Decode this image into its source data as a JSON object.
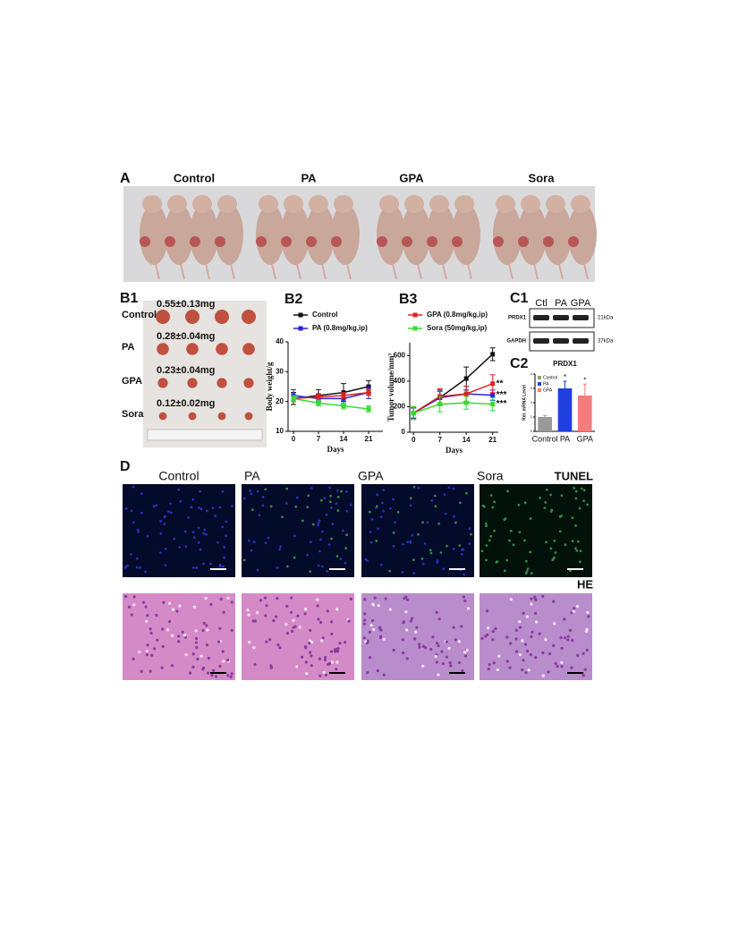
{
  "panel_a": {
    "label": "A",
    "groups": [
      "Control",
      "PA",
      "GPA",
      "Sora"
    ]
  },
  "panel_b1": {
    "label": "B1",
    "rows": [
      {
        "group": "Control",
        "weight": "0.55±0.13mg"
      },
      {
        "group": "PA",
        "weight": "0.28±0.04mg"
      },
      {
        "group": "GPA",
        "weight": "0.23±0.04mg"
      },
      {
        "group": "Sora",
        "weight": "0.12±0.02mg"
      }
    ]
  },
  "panel_c1": {
    "label": "C1",
    "lanes": [
      "Ctl",
      "PA",
      "GPA"
    ],
    "proteins": [
      {
        "name": "PRDX1",
        "size": "21kDa"
      },
      {
        "name": "GAPDH",
        "size": "37kDa"
      }
    ]
  },
  "panel_d": {
    "label": "D",
    "groups": [
      "Control",
      "PA",
      "GPA",
      "Sora"
    ],
    "stains": [
      "TUNEL",
      "HE"
    ]
  },
  "chart_data": [
    {
      "type": "line",
      "label": "B2",
      "x": [
        0,
        7,
        14,
        21
      ],
      "xlim": [
        -1.5,
        25
      ],
      "xticks": [
        0,
        7,
        14,
        21
      ],
      "ylim": [
        10,
        40
      ],
      "yticks": [
        10,
        20,
        30,
        40
      ],
      "xlabel": "Days",
      "ylabel": "Body weight/g",
      "series": [
        {
          "name": "Control",
          "color": "#111111",
          "values": [
            21,
            22,
            23,
            25
          ],
          "errors": [
            2,
            2,
            3,
            2
          ]
        },
        {
          "name": "PA (0.8mg/kg,ip)",
          "color": "#2222dd",
          "values": [
            22,
            21,
            21,
            23
          ],
          "errors": [
            2,
            1,
            2,
            2
          ]
        },
        {
          "color": "#dd2222",
          "values": [
            21,
            21.5,
            22,
            23
          ],
          "errors": [
            1,
            1,
            1,
            1
          ]
        },
        {
          "color": "#33dd33",
          "values": [
            21,
            19.5,
            18.5,
            17.5
          ],
          "errors": [
            1,
            1,
            1,
            1
          ]
        }
      ]
    },
    {
      "type": "line",
      "label": "B3",
      "x": [
        0,
        7,
        14,
        21
      ],
      "xlim": [
        -1,
        22.5
      ],
      "xticks": [
        0,
        7,
        14,
        21
      ],
      "ylim": [
        0,
        700
      ],
      "yticks": [
        0,
        200,
        400,
        600
      ],
      "xlabel": "Days",
      "ylabel": "Tumor volume/mm³",
      "series": [
        {
          "color": "#111111",
          "values": [
            150,
            270,
            420,
            610
          ],
          "errors": [
            40,
            60,
            90,
            50
          ]
        },
        {
          "color": "#2222dd",
          "values": [
            150,
            270,
            300,
            290
          ],
          "errors": [
            40,
            50,
            60,
            40
          ],
          "end_label": "***"
        },
        {
          "name": "GPA (0.8mg/kg,ip)",
          "color": "#dd2222",
          "values": [
            150,
            280,
            300,
            380
          ],
          "errors": [
            50,
            60,
            60,
            70
          ],
          "end_label": "**"
        },
        {
          "name": "Sora (50mg/kg,ip)",
          "color": "#33dd33",
          "values": [
            150,
            220,
            230,
            220
          ],
          "errors": [
            50,
            60,
            50,
            50
          ],
          "end_label": "***"
        }
      ]
    },
    {
      "type": "bar",
      "label": "C2",
      "title": "PRDX1",
      "categories": [
        "Control",
        "PA",
        "GPA"
      ],
      "values": [
        1,
        3,
        2.5
      ],
      "errors": [
        0.1,
        0.5,
        0.8
      ],
      "significance": [
        null,
        "*",
        "*"
      ],
      "colors": [
        "#999999",
        "#1f3fe0",
        "#f47c7c"
      ],
      "ylabel": "Rel. mRNA Level",
      "ylim": [
        0,
        4
      ],
      "yticks": [
        0,
        1,
        2,
        3,
        4
      ],
      "legend": "upper left"
    }
  ]
}
